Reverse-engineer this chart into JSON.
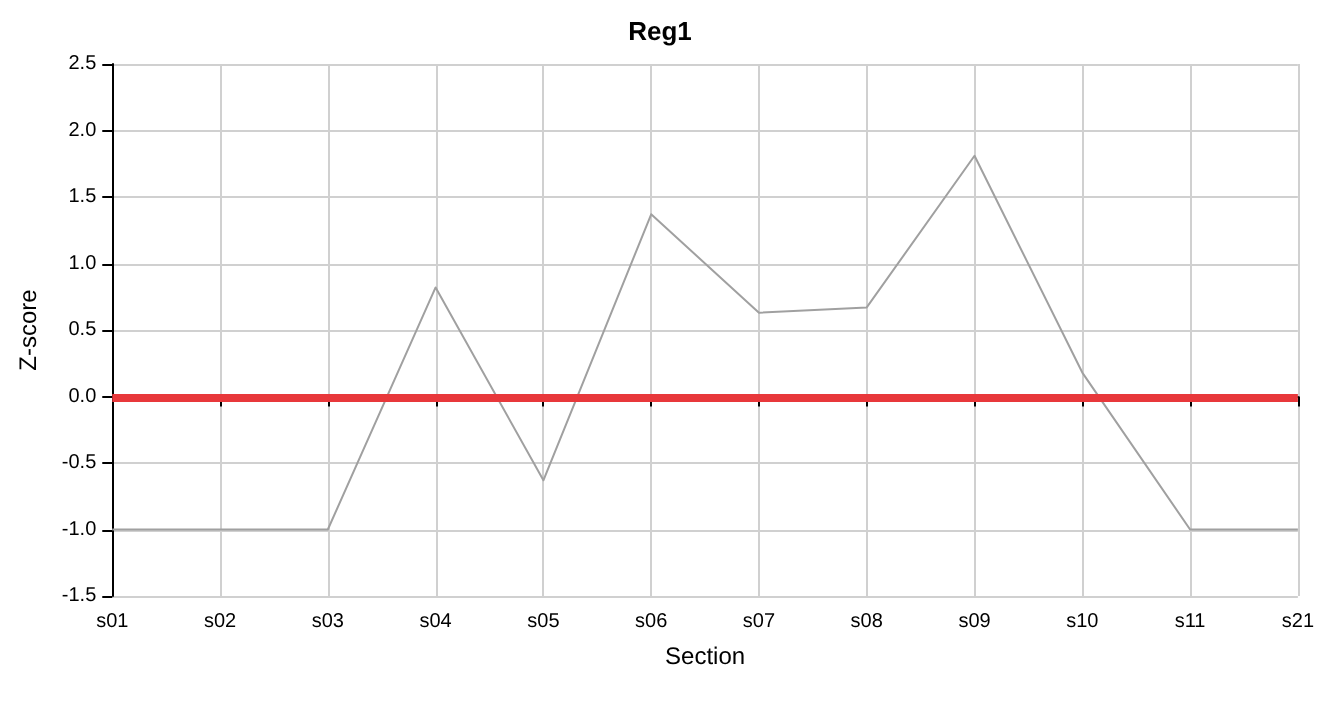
{
  "chart_data": {
    "type": "line",
    "title": "Reg1",
    "xlabel": "Section",
    "ylabel": "Z-score",
    "categories": [
      "s01",
      "s02",
      "s03",
      "s04",
      "s05",
      "s06",
      "s07",
      "s08",
      "s09",
      "s10",
      "s11",
      "s21"
    ],
    "series": [
      {
        "color": "#a0a0a0",
        "values": [
          -1,
          -1,
          -1,
          0.82,
          -0.63,
          1.37,
          0.63,
          0.67,
          1.81,
          0.18,
          -1,
          -1
        ]
      }
    ],
    "ylim": [
      -1.5,
      2.5
    ],
    "yticks": [
      -1.5,
      {
        "value": -1,
        "label": "-1.0"
      },
      -0.5,
      {
        "value": 0,
        "label": "0.0"
      },
      0.5,
      {
        "value": 1,
        "label": "1.0"
      },
      1.5,
      {
        "value": 2,
        "label": "2.0"
      },
      2.5
    ],
    "ref_lines": [
      {
        "axis": "y",
        "value": 0,
        "color": "#e8383b"
      }
    ],
    "grid": true,
    "marker": "none",
    "line_style": "solid"
  }
}
